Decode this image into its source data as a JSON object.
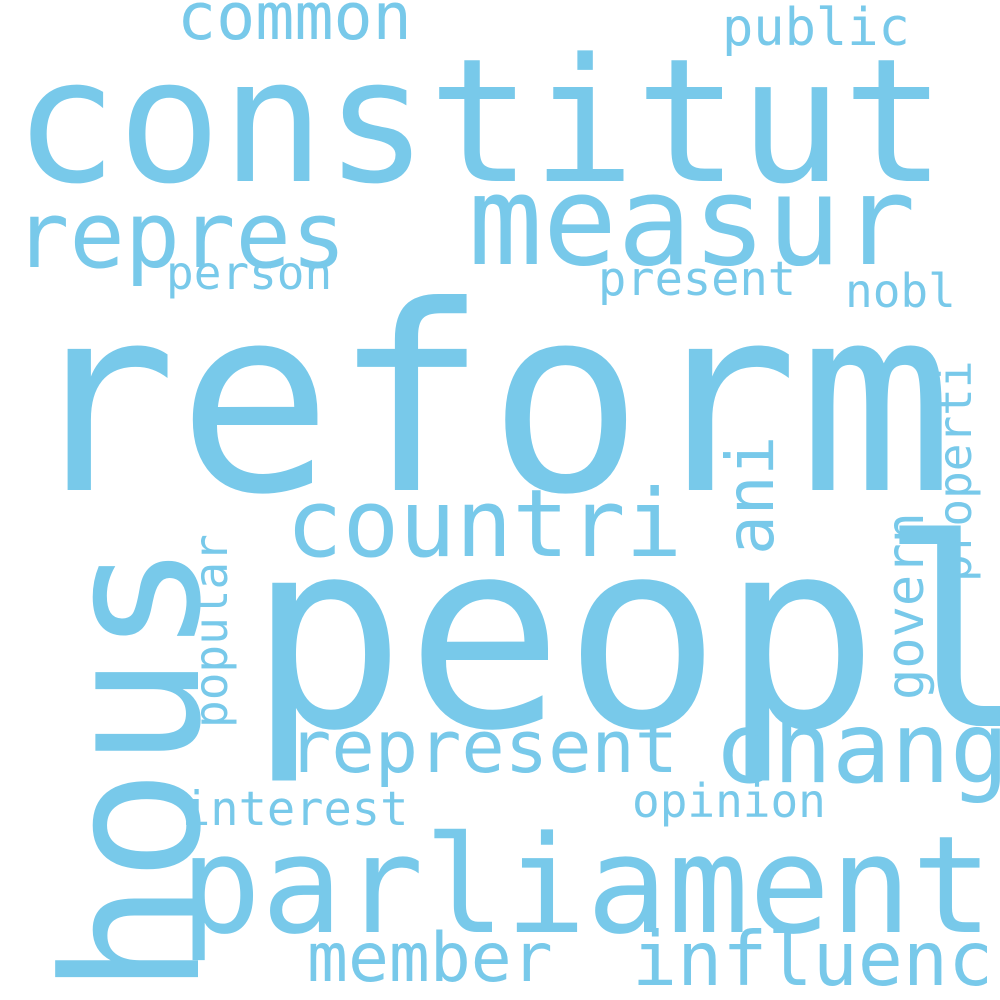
{
  "colors": {
    "background": "#ffffff",
    "word": "#78c9ea"
  },
  "words": {
    "reform": "reform",
    "peopl": "peopl",
    "constitut": "constitut",
    "hous": "hous",
    "parliament": "parliament",
    "measur": "measur",
    "countri": "countri",
    "repres": "repres",
    "represent": "represent",
    "chang": "chang",
    "influenc": "influenc",
    "member": "member",
    "common": "common",
    "public": "public",
    "person": "person",
    "present": "present",
    "nobl": "nobl",
    "ani": "ani",
    "properti": "properti",
    "govern": "govern",
    "popular": "popular",
    "interest": "interest",
    "opinion": "opinion"
  }
}
